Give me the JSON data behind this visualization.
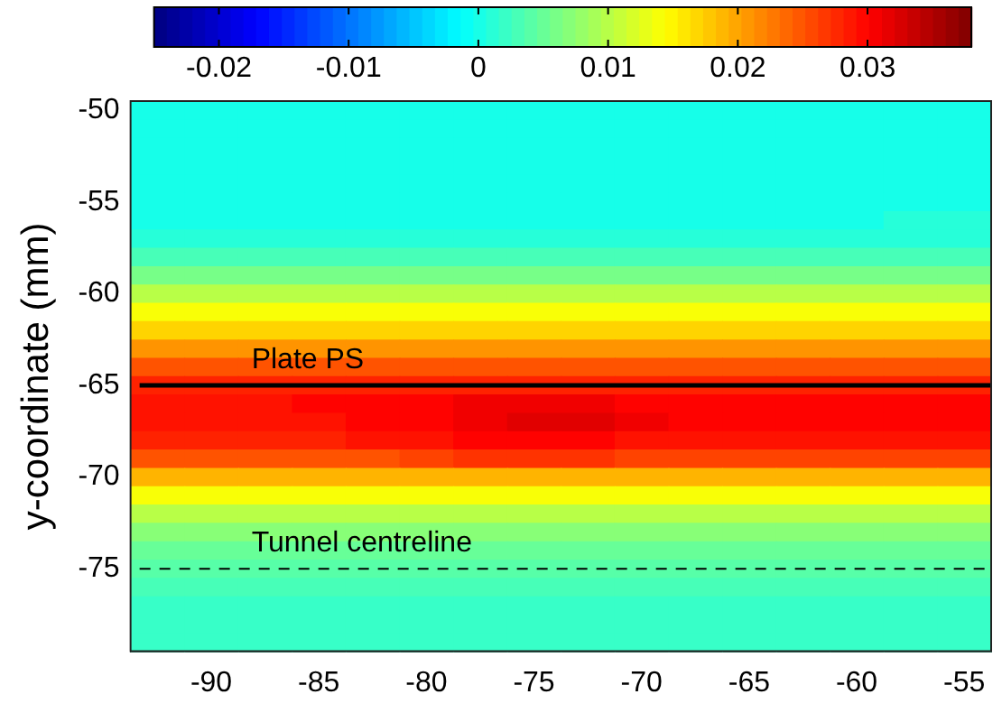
{
  "chart_data": {
    "type": "heatmap",
    "ylabel": "y-coordinate (mm)",
    "categories": [
      null,
      "-90",
      null,
      "-85",
      null,
      "-80",
      null,
      "-75",
      null,
      "-70",
      null,
      "-65",
      null,
      "-60",
      null,
      "-55"
    ],
    "y_categories": [
      "-50",
      null,
      null,
      null,
      null,
      "-55",
      null,
      null,
      null,
      null,
      "-60",
      null,
      null,
      null,
      null,
      "-65",
      null,
      null,
      null,
      null,
      "-70",
      null,
      null,
      null,
      null,
      "-75",
      null,
      null,
      null,
      null
    ],
    "cells": [
      [
        0,
        0,
        0,
        0,
        0,
        0,
        0,
        0,
        0,
        0,
        0,
        0,
        0,
        0,
        0,
        0
      ],
      [
        0,
        0,
        0,
        0,
        0,
        0,
        0,
        0,
        0,
        0,
        0,
        0,
        0,
        0,
        0,
        0
      ],
      [
        0,
        0,
        0,
        0,
        0,
        0,
        0,
        0,
        0,
        0,
        0,
        0,
        0,
        0,
        0,
        0
      ],
      [
        0,
        0,
        0,
        0,
        0,
        0,
        0,
        0,
        0,
        0,
        0,
        0,
        0,
        0,
        0,
        0
      ],
      [
        0,
        0,
        0,
        0,
        0,
        0,
        0,
        0,
        0,
        0,
        0,
        0,
        0,
        0,
        0,
        0
      ],
      [
        0,
        0,
        0,
        0,
        0,
        0,
        0,
        0,
        0,
        0,
        0,
        0,
        0,
        0,
        0,
        0
      ],
      [
        0,
        0,
        0,
        0,
        0,
        0,
        0,
        0,
        0,
        0,
        0,
        0,
        0,
        0,
        0.001,
        0.001
      ],
      [
        0.001,
        0.001,
        0.001,
        0.001,
        0.001,
        0.001,
        0.001,
        0.001,
        0.001,
        0.001,
        0.001,
        0.001,
        0.001,
        0.001,
        0.001,
        0.001
      ],
      [
        0.003,
        0.003,
        0.003,
        0.003,
        0.003,
        0.003,
        0.003,
        0.003,
        0.003,
        0.003,
        0.003,
        0.003,
        0.003,
        0.003,
        0.003,
        0.003
      ],
      [
        0.006,
        0.006,
        0.006,
        0.006,
        0.006,
        0.006,
        0.006,
        0.006,
        0.006,
        0.006,
        0.006,
        0.006,
        0.006,
        0.006,
        0.006,
        0.006
      ],
      [
        0.01,
        0.01,
        0.01,
        0.01,
        0.01,
        0.01,
        0.01,
        0.01,
        0.01,
        0.01,
        0.01,
        0.01,
        0.01,
        0.01,
        0.01,
        0.01
      ],
      [
        0.014,
        0.014,
        0.014,
        0.014,
        0.014,
        0.014,
        0.014,
        0.014,
        0.014,
        0.014,
        0.014,
        0.014,
        0.014,
        0.014,
        0.014,
        0.014
      ],
      [
        0.017,
        0.017,
        0.017,
        0.017,
        0.017,
        0.017,
        0.017,
        0.017,
        0.017,
        0.017,
        0.017,
        0.017,
        0.017,
        0.017,
        0.017,
        0.017
      ],
      [
        0.021,
        0.021,
        0.021,
        0.021,
        0.021,
        0.021,
        0.021,
        0.021,
        0.021,
        0.021,
        0.021,
        0.021,
        0.021,
        0.021,
        0.021,
        0.021
      ],
      [
        0.025,
        0.025,
        0.025,
        0.025,
        0.025,
        0.025,
        0.025,
        0.025,
        0.025,
        0.025,
        0.025,
        0.025,
        0.025,
        0.025,
        0.025,
        0.025
      ],
      [
        0.028,
        0.028,
        0.028,
        0.028,
        0.028,
        0.028,
        0.028,
        0.028,
        0.028,
        0.028,
        0.028,
        0.028,
        0.028,
        0.028,
        0.028,
        0.028
      ],
      [
        0.029,
        0.029,
        0.029,
        0.03,
        0.03,
        0.03,
        0.031,
        0.031,
        0.031,
        0.03,
        0.03,
        0.03,
        0.03,
        0.03,
        0.03,
        0.03
      ],
      [
        0.029,
        0.029,
        0.029,
        0.029,
        0.03,
        0.03,
        0.031,
        0.032,
        0.032,
        0.031,
        0.03,
        0.03,
        0.03,
        0.03,
        0.03,
        0.03
      ],
      [
        0.028,
        0.028,
        0.028,
        0.028,
        0.029,
        0.029,
        0.03,
        0.03,
        0.03,
        0.029,
        0.029,
        0.029,
        0.029,
        0.029,
        0.029,
        0.029
      ],
      [
        0.025,
        0.025,
        0.025,
        0.025,
        0.025,
        0.026,
        0.027,
        0.027,
        0.027,
        0.026,
        0.026,
        0.026,
        0.026,
        0.026,
        0.026,
        0.026
      ],
      [
        0.019,
        0.019,
        0.019,
        0.019,
        0.019,
        0.019,
        0.019,
        0.019,
        0.019,
        0.019,
        0.019,
        0.019,
        0.019,
        0.019,
        0.019,
        0.019
      ],
      [
        0.014,
        0.014,
        0.014,
        0.014,
        0.014,
        0.014,
        0.014,
        0.014,
        0.014,
        0.014,
        0.014,
        0.014,
        0.014,
        0.014,
        0.014,
        0.014
      ],
      [
        0.01,
        0.01,
        0.01,
        0.01,
        0.01,
        0.01,
        0.01,
        0.01,
        0.01,
        0.01,
        0.01,
        0.01,
        0.01,
        0.01,
        0.01,
        0.01
      ],
      [
        0.007,
        0.007,
        0.007,
        0.007,
        0.007,
        0.007,
        0.007,
        0.007,
        0.007,
        0.007,
        0.007,
        0.007,
        0.007,
        0.007,
        0.007,
        0.007
      ],
      [
        0.005,
        0.005,
        0.005,
        0.005,
        0.005,
        0.005,
        0.005,
        0.005,
        0.005,
        0.005,
        0.005,
        0.005,
        0.005,
        0.005,
        0.005,
        0.005
      ],
      [
        0.004,
        0.004,
        0.004,
        0.004,
        0.004,
        0.004,
        0.004,
        0.004,
        0.004,
        0.004,
        0.004,
        0.004,
        0.004,
        0.004,
        0.004,
        0.004
      ],
      [
        0.003,
        0.003,
        0.003,
        0.003,
        0.003,
        0.003,
        0.003,
        0.003,
        0.003,
        0.003,
        0.003,
        0.003,
        0.003,
        0.003,
        0.003,
        0.003
      ],
      [
        0.002,
        0.002,
        0.002,
        0.002,
        0.002,
        0.002,
        0.002,
        0.002,
        0.002,
        0.002,
        0.002,
        0.002,
        0.002,
        0.002,
        0.002,
        0.002
      ],
      [
        0.002,
        0.002,
        0.002,
        0.002,
        0.002,
        0.002,
        0.002,
        0.002,
        0.002,
        0.002,
        0.002,
        0.002,
        0.002,
        0.002,
        0.002,
        0.002
      ],
      [
        0.002,
        0.002,
        0.002,
        0.002,
        0.002,
        0.002,
        0.002,
        0.002,
        0.002,
        0.002,
        0.002,
        0.002,
        0.002,
        0.002,
        0.002,
        0.002
      ]
    ],
    "clim": [
      -0.025,
      0.038
    ],
    "cticks": [
      -0.02,
      -0.01,
      0,
      0.01,
      0.02,
      0.03
    ],
    "ref_lines": [
      {
        "axis": "y",
        "value": "-65",
        "label": "Plate PS",
        "color": "#000000",
        "line_style": "solid"
      },
      {
        "axis": "y",
        "value": "-75",
        "label": "Tunnel centreline",
        "color": "#000000",
        "line_style": "dashed"
      }
    ]
  }
}
